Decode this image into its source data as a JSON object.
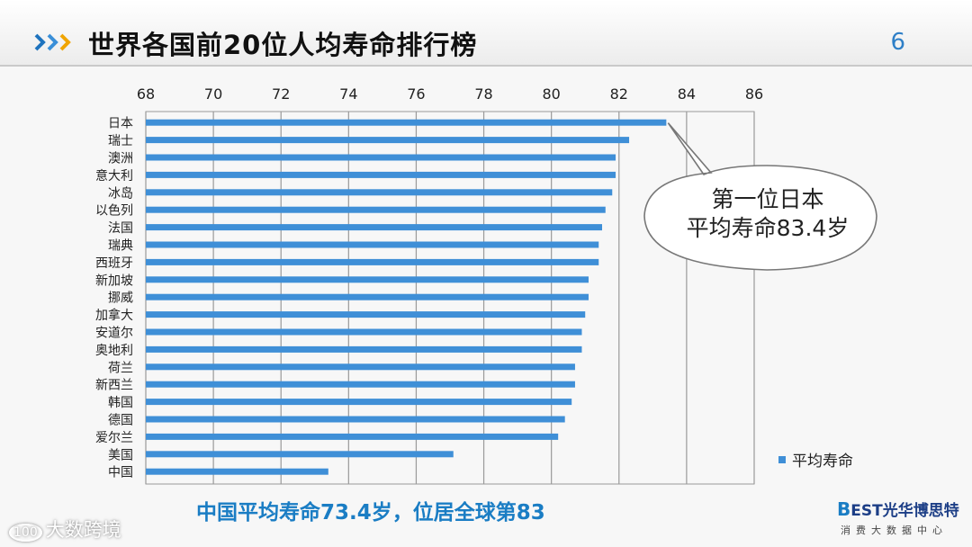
{
  "header": {
    "title": "世界各国前20位人均寿命排行榜",
    "page_number": "6"
  },
  "chart_data": {
    "type": "bar",
    "orientation": "horizontal",
    "x_axis_position": "top",
    "xlim": [
      68,
      86
    ],
    "xticks": [
      "68",
      "70",
      "72",
      "74",
      "76",
      "78",
      "80",
      "82",
      "84",
      "86"
    ],
    "grid": true,
    "legend_position": "bottom-right",
    "color": "#3f8fd7",
    "categories": [
      "日本",
      "瑞士",
      "澳洲",
      "意大利",
      "冰岛",
      "以色列",
      "法国",
      "瑞典",
      "西班牙",
      "新加坡",
      "挪威",
      "加拿大",
      "安道尔",
      "奥地利",
      "荷兰",
      "新西兰",
      "韩国",
      "德国",
      "爱尔兰",
      "美国",
      "中国"
    ],
    "series": [
      {
        "name": "平均寿命",
        "values": [
          83.4,
          82.3,
          81.9,
          81.9,
          81.8,
          81.6,
          81.5,
          81.4,
          81.4,
          81.1,
          81.1,
          81.0,
          80.9,
          80.9,
          80.7,
          80.7,
          80.6,
          80.4,
          80.2,
          77.1,
          73.4
        ]
      }
    ]
  },
  "callout": {
    "line1": "第一位日本",
    "line2": "平均寿命83.4岁"
  },
  "footer": {
    "note": "中国平均寿命73.4岁，位居全球第83",
    "watermark_logo": "100",
    "watermark": "大数跨境",
    "brand_letter": "B",
    "brand_est": "EST",
    "brand_name": "光华博思特",
    "brand_sub": "消费大数据中心"
  }
}
